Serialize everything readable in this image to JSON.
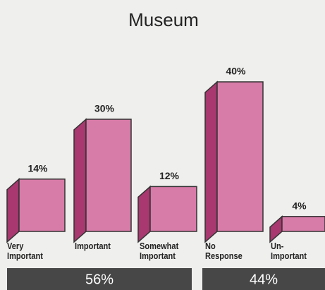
{
  "chart_data": {
    "type": "bar3d",
    "title": "Museum",
    "categories": [
      "Very\nImportant",
      "Important",
      "Somewhat\nImportant",
      "No\nResponse",
      "Un-\nImportant"
    ],
    "values": [
      14,
      30,
      12,
      40,
      4
    ],
    "value_labels": [
      "14%",
      "30%",
      "12%",
      "40%",
      "4%"
    ],
    "color": "#d77ba8",
    "side_color": "#a8386f",
    "group_values": [
      56,
      44
    ],
    "group_value_labels": [
      "56%",
      "44%"
    ]
  }
}
